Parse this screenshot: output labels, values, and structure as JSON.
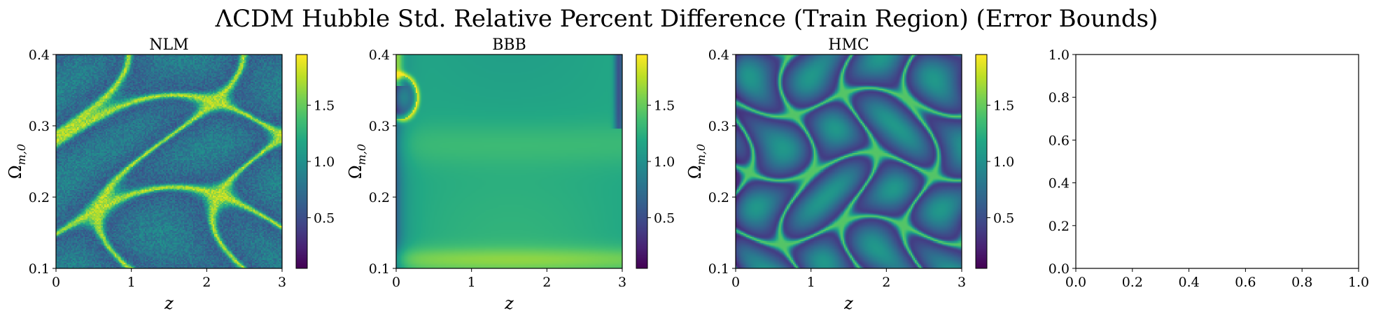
{
  "figure": {
    "title": "ΛCDM Hubble Std. Relative Percent Difference (Train Region) (Error Bounds)"
  },
  "chart_data": [
    {
      "type": "heatmap",
      "title": "NLM",
      "xlabel": "z",
      "ylabel": "Ω_{m,0}",
      "xlim": [
        0,
        3
      ],
      "ylim": [
        0.1,
        0.4
      ],
      "x_ticks": [
        "0",
        "1",
        "2",
        "3"
      ],
      "y_ticks": [
        "0.1",
        "0.2",
        "0.3",
        "0.4"
      ],
      "colorbar": {
        "range": [
          0.05,
          1.95
        ],
        "ticks": [
          "0.5",
          "1.0",
          "1.5"
        ],
        "colormap": "viridis"
      },
      "pattern": "noisy-curved-bands"
    },
    {
      "type": "heatmap",
      "title": "BBB",
      "xlabel": "z",
      "ylabel": "Ω_{m,0}",
      "xlim": [
        0,
        3
      ],
      "ylim": [
        0.1,
        0.4
      ],
      "x_ticks": [
        "0",
        "1",
        "2",
        "3"
      ],
      "y_ticks": [
        "0.1",
        "0.2",
        "0.3",
        "0.4"
      ],
      "colorbar": {
        "range": [
          0.05,
          1.95
        ],
        "ticks": [
          "0.5",
          "1.0",
          "1.5"
        ],
        "colormap": "viridis"
      },
      "pattern": "smooth-mostly-flat"
    },
    {
      "type": "heatmap",
      "title": "HMC",
      "xlabel": "z",
      "ylabel": "Ω_{m,0}",
      "xlim": [
        0,
        3
      ],
      "ylim": [
        0.1,
        0.4
      ],
      "x_ticks": [
        "0",
        "1",
        "2",
        "3"
      ],
      "y_ticks": [
        "0.1",
        "0.2",
        "0.3",
        "0.4"
      ],
      "colorbar": {
        "range": [
          0.05,
          1.95
        ],
        "ticks": [
          "0.5",
          "1.0",
          "1.5"
        ],
        "colormap": "viridis"
      },
      "pattern": "oscillatory-grid"
    },
    {
      "type": "empty",
      "title": "",
      "xlim": [
        0,
        1
      ],
      "ylim": [
        0,
        1
      ],
      "x_ticks": [
        "0.0",
        "0.2",
        "0.4",
        "0.6",
        "0.8",
        "1.0"
      ],
      "y_ticks": [
        "0.0",
        "0.2",
        "0.4",
        "0.6",
        "0.8",
        "1.0"
      ]
    }
  ]
}
